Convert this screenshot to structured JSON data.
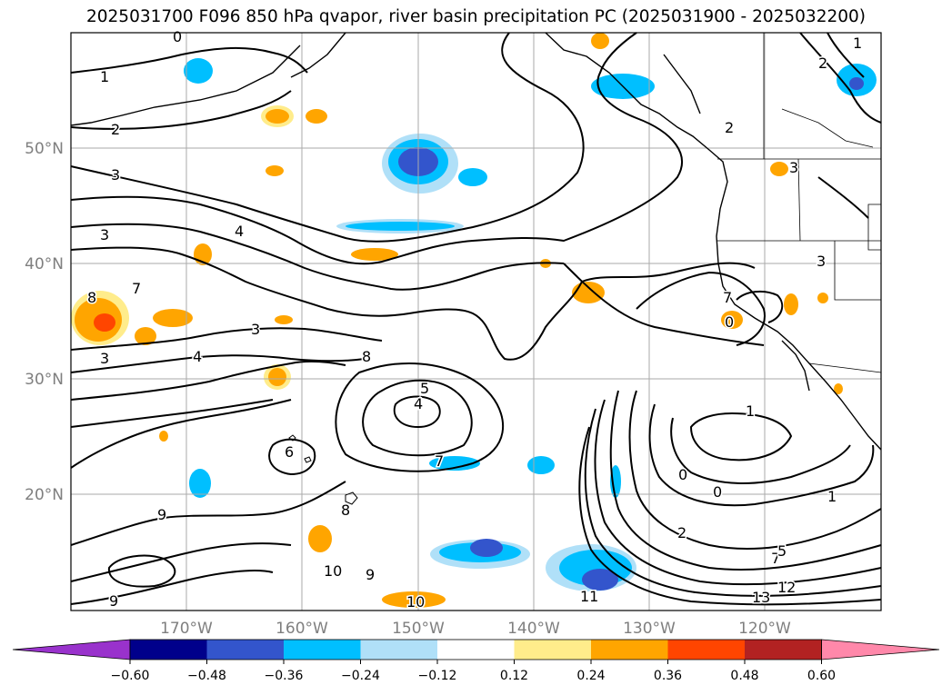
{
  "title": "2025031700 F096 850 hPa qvapor, river basin precipitation PC (2025031900 - 2025032200)",
  "lon_labels": [
    "170°W",
    "160°W",
    "150°W",
    "140°W",
    "130°W",
    "120°W"
  ],
  "lat_labels": [
    "50°N",
    "40°N",
    "30°N",
    "20°N"
  ],
  "colorbar": {
    "tick_labels": [
      "−0.60",
      "−0.48",
      "−0.36",
      "−0.24",
      "−0.12",
      "0.12",
      "0.24",
      "0.36",
      "0.48",
      "0.60"
    ],
    "colors": [
      "#9932cc",
      "#00008b",
      "#3355cc",
      "#00bfff",
      "#b0e0f8",
      "#ffffff",
      "#ffec8b",
      "#ffa500",
      "#ff4500",
      "#b22222",
      "#ff88aa"
    ]
  },
  "contour_labels": [
    "0",
    "1",
    "1",
    "2",
    "2",
    "2",
    "3",
    "3",
    "3",
    "3",
    "3",
    "4",
    "4",
    "4",
    "5",
    "7",
    "7",
    "8",
    "8",
    "9",
    "9",
    "10",
    "10",
    "11",
    "13",
    "12",
    "1",
    "0",
    "0",
    "1",
    "2",
    "6",
    "7",
    "8",
    "3",
    "7",
    "0",
    "9",
    "5"
  ],
  "colors": {
    "contour": "#000000",
    "grid": "#aaaaaa",
    "axis_label": "#7f7f7f"
  }
}
